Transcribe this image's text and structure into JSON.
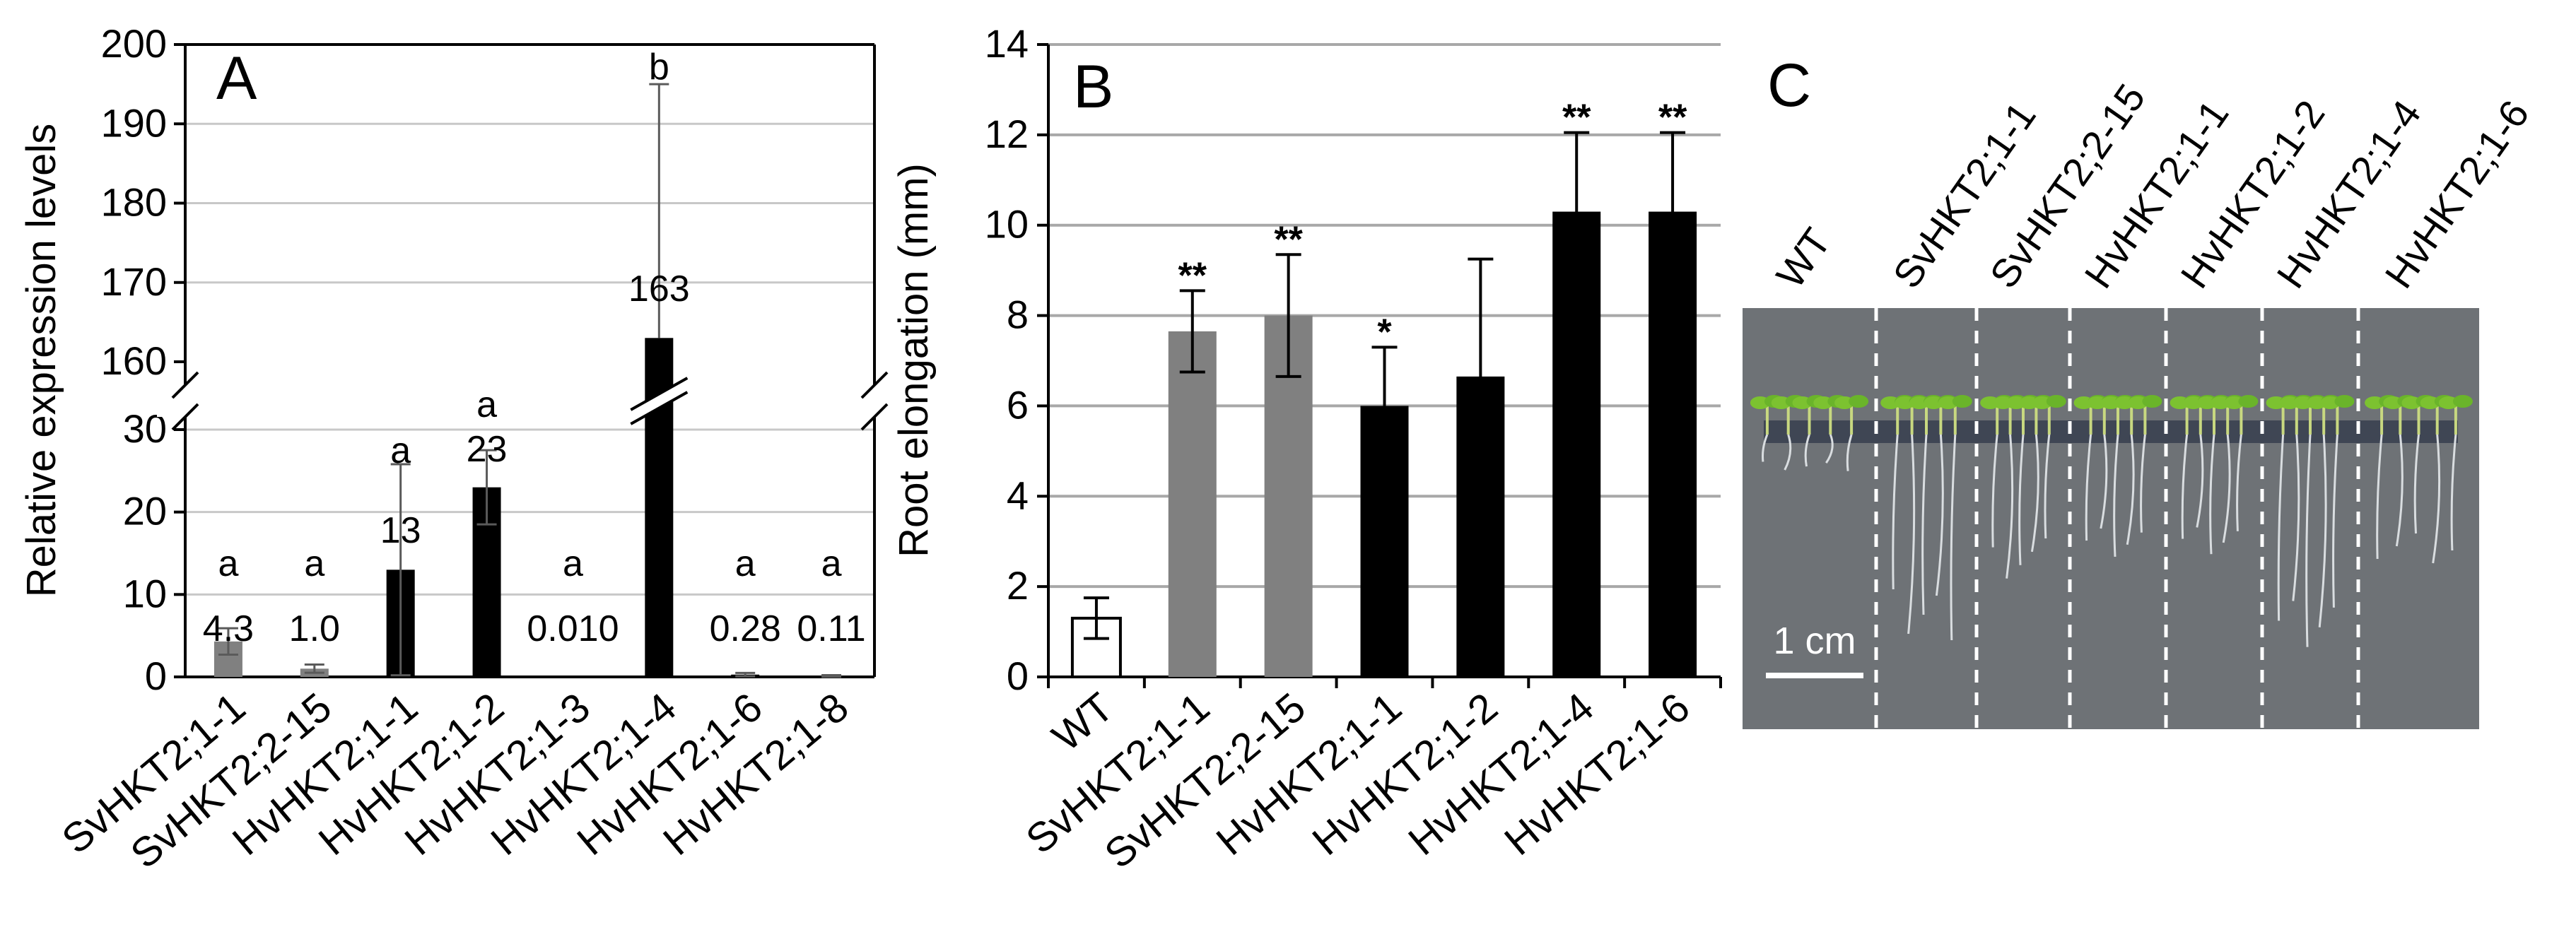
{
  "chart_data": [
    {
      "panel": "A",
      "type": "bar",
      "ylabel": "Relative expression levels",
      "ylim_lower": [
        0,
        30
      ],
      "ylim_upper": [
        160,
        200
      ],
      "broken_axis": true,
      "lower_ticks": [
        "0",
        "10",
        "20",
        "30"
      ],
      "upper_ticks": [
        "160",
        "170",
        "180",
        "190",
        "200"
      ],
      "categories": [
        "SvHKT2;1-1",
        "SvHKT2;2-15",
        "HvHKT2;1-1",
        "HvHKT2;1-2",
        "HvHKT2;1-3",
        "HvHKT2;1-4",
        "HvHKT2;1-6",
        "HvHKT2;1-8"
      ],
      "values": [
        4.3,
        1.0,
        13,
        23,
        0.01,
        163,
        0.28,
        0.11
      ],
      "errors": [
        1.6,
        0.5,
        12.8,
        4.5,
        0,
        32,
        0.2,
        0.1
      ],
      "value_labels": [
        "4.3",
        "1.0",
        "13",
        "23",
        "0.010",
        "163",
        "0.28",
        "0.11"
      ],
      "letters": [
        "a",
        "a",
        "a",
        "a",
        "a",
        "b",
        "a",
        "a"
      ],
      "colors": [
        "#808080",
        "#808080",
        "#000000",
        "#000000",
        "#000000",
        "#000000",
        "#000000",
        "#000000"
      ]
    },
    {
      "panel": "B",
      "type": "bar",
      "ylabel": "Root elongation (mm)",
      "ylim": [
        0,
        14
      ],
      "ticks": [
        "0",
        "2",
        "4",
        "6",
        "8",
        "10",
        "12",
        "14"
      ],
      "categories": [
        "WT",
        "SvHKT2;1-1",
        "SvHKT2;2-15",
        "HvHKT2;1-1",
        "HvHKT2;1-2",
        "HvHKT2;1-4",
        "HvHKT2;1-6"
      ],
      "values": [
        1.3,
        7.65,
        8.0,
        6.0,
        6.65,
        10.3,
        10.3
      ],
      "errors": [
        0.45,
        0.9,
        1.35,
        1.3,
        2.6,
        1.75,
        1.75
      ],
      "significance": [
        "",
        "**",
        "**",
        "*",
        "",
        "**",
        "**"
      ],
      "colors": [
        "#ffffff",
        "#808080",
        "#808080",
        "#000000",
        "#000000",
        "#000000",
        "#000000"
      ]
    }
  ],
  "photo": {
    "panel": "C",
    "lanes": [
      "WT",
      "SvHKT2;1-1",
      "SvHKT2;2-15",
      "HvHKT2;1-1",
      "HvHKT2;1-2",
      "HvHKT2;1-4",
      "HvHKT2;1-6"
    ],
    "scale_bar": "1 cm",
    "background": "#6e7276"
  }
}
